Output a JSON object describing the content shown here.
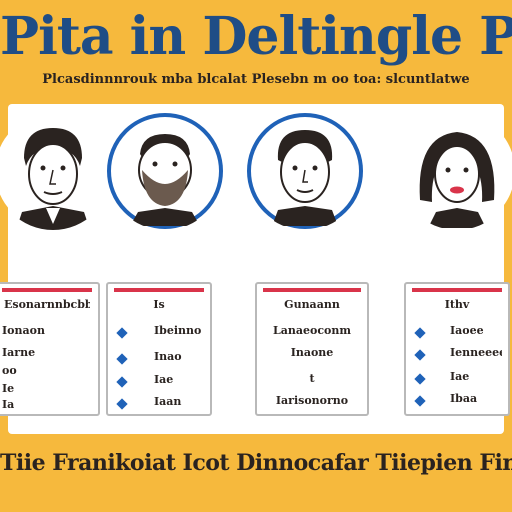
{
  "header": {
    "title": "Pita in Deltingle Prarrfats",
    "subtitle": "Plcasdinnnrouk mba blcalat Plesebn m oo toa: slcuntlatwe"
  },
  "colors": {
    "background": "#f6b93d",
    "title": "#1f4d86",
    "ring": "#1f62b8",
    "card_bar": "#d9344a",
    "text": "#2a2320"
  },
  "portraits": [
    {
      "icon": "man-portrait-icon",
      "ring": false
    },
    {
      "icon": "bearded-man-portrait-icon",
      "ring": true
    },
    {
      "icon": "young-man-portrait-icon",
      "ring": true
    },
    {
      "icon": "woman-portrait-icon",
      "ring": false
    }
  ],
  "cards": [
    {
      "title": "Esonarnnbcbb",
      "rows": [
        "Ionaon",
        "Iarne",
        "oo",
        "Ie",
        "Ia"
      ]
    },
    {
      "title": "Is",
      "rows": [
        "Ibeinno",
        "Inao",
        "Iae",
        "Iaan"
      ]
    },
    {
      "title": "Gunaann",
      "rows": [
        "Lanaeoconm",
        "Inaone",
        "t",
        "Iarisonorno"
      ]
    },
    {
      "title": "Ithv",
      "rows": [
        "Iaoee",
        "Ienneeee",
        "Iae",
        "Ibaa"
      ]
    }
  ],
  "footer": {
    "text": "Tiie Franikoiat Icot Dinnocafar Tiiepien Finin"
  }
}
